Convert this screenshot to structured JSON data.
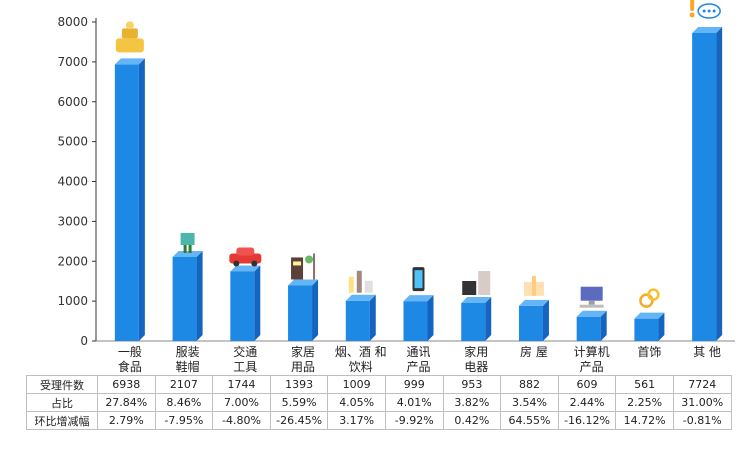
{
  "chart_data": {
    "type": "bar",
    "title": "",
    "xlabel": "",
    "ylabel": "",
    "ylim": [
      0,
      8000
    ],
    "yticks": [
      0,
      1000,
      2000,
      3000,
      4000,
      5000,
      6000,
      7000,
      8000
    ],
    "grid": false,
    "bar_color": "#1e88e5",
    "categories": [
      [
        "一般",
        "食品"
      ],
      [
        "服装",
        "鞋帽"
      ],
      [
        "交通",
        "工具"
      ],
      [
        "家居",
        "用品"
      ],
      [
        "烟、酒 和",
        "饮料"
      ],
      [
        "通讯",
        "产品"
      ],
      [
        "家用",
        "电器"
      ],
      [
        "房 屋"
      ],
      [
        "计算机",
        "产品"
      ],
      [
        "首饰"
      ],
      [
        "其 他"
      ]
    ],
    "values": [
      6938,
      2107,
      1744,
      1393,
      1009,
      999,
      953,
      882,
      609,
      561,
      7724
    ],
    "icons": [
      "food-gift-icon",
      "clothing-icon",
      "car-icon",
      "furniture-icon",
      "drinks-icon",
      "phone-icon",
      "appliance-icon",
      "house-icon",
      "computer-icon",
      "jewelry-icon",
      "speech-exclaim-icon"
    ]
  },
  "table": {
    "rows": [
      {
        "label": "受理件数",
        "values": [
          "6938",
          "2107",
          "1744",
          "1393",
          "1009",
          "999",
          "953",
          "882",
          "609",
          "561",
          "7724"
        ]
      },
      {
        "label": "占比",
        "values": [
          "27.84%",
          "8.46%",
          "7.00%",
          "5.59%",
          "4.05%",
          "4.01%",
          "3.82%",
          "3.54%",
          "2.44%",
          "2.25%",
          "31.00%"
        ]
      },
      {
        "label": "环比增减幅",
        "values": [
          "2.79%",
          "-7.95%",
          "-4.80%",
          "-26.45%",
          "3.17%",
          "-9.92%",
          "0.42%",
          "64.55%",
          "-16.12%",
          "14.72%",
          "-0.81%"
        ]
      }
    ]
  }
}
